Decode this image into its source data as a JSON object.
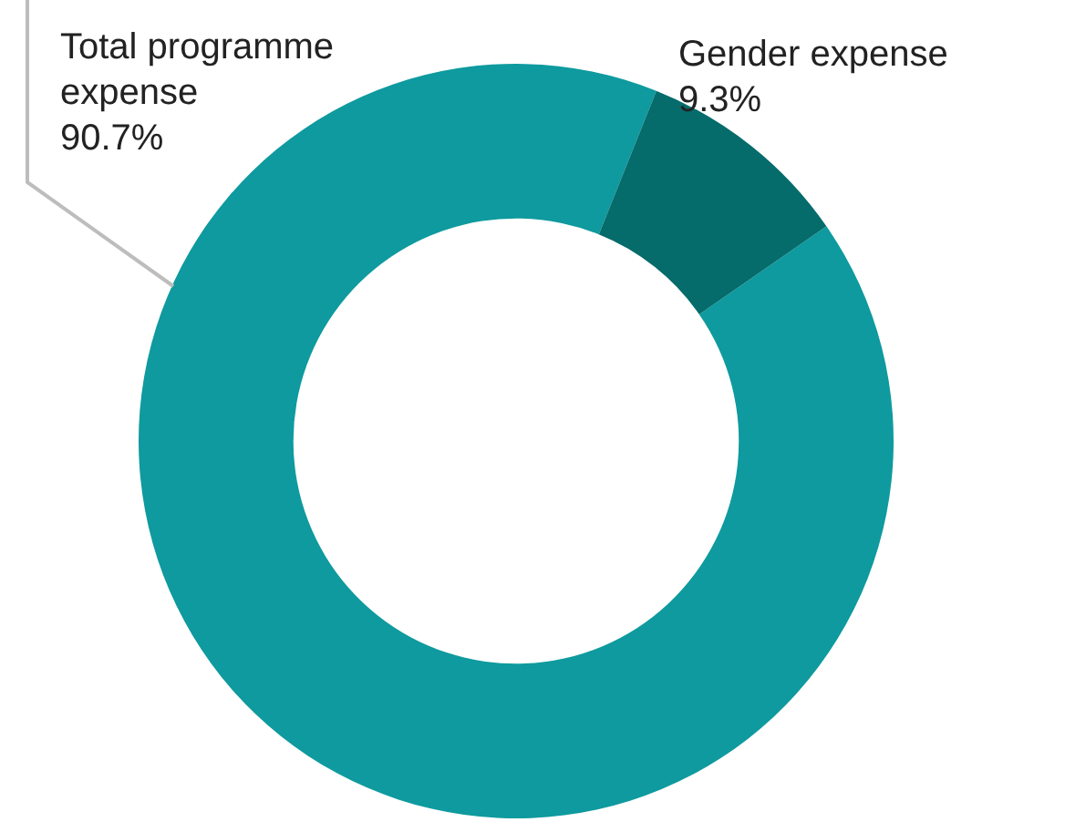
{
  "chart_data": {
    "type": "donut",
    "categories": [
      "Total programme expense",
      "Gender expense"
    ],
    "values": [
      90.7,
      9.3
    ],
    "colors": [
      "#0e9a9e",
      "#056b6b"
    ],
    "value_labels": [
      "90.7%",
      "9.3%"
    ],
    "legend": false
  }
}
